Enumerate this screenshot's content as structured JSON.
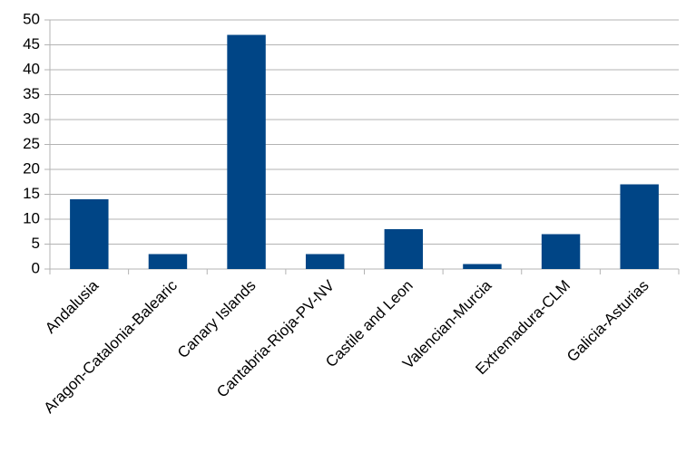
{
  "chart_data": {
    "type": "bar",
    "categories": [
      "Andalusia",
      "Aragon-Catalonia-Balearic",
      "Canary Islands",
      "Cantabria-Rioja-PV-NV",
      "Castile and Leon",
      "Valencian-Murcia",
      "Extremadura-CLM",
      "Galicia-Asturias"
    ],
    "values": [
      14,
      3,
      47,
      3,
      8,
      1,
      7,
      17
    ],
    "color": "#004586",
    "ylim": [
      0,
      50
    ],
    "yticks": [
      0,
      5,
      10,
      15,
      20,
      25,
      30,
      35,
      40,
      45,
      50
    ],
    "grid": true
  }
}
